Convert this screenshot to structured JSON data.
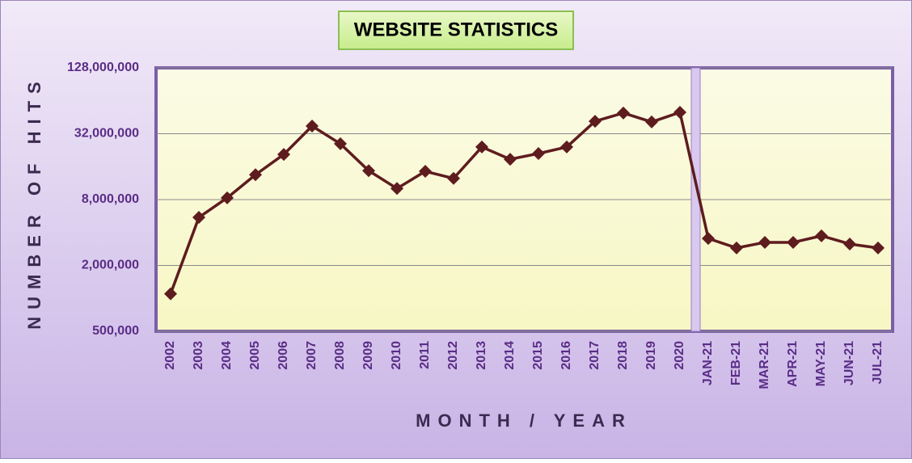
{
  "chart_data": {
    "type": "line",
    "title": "WEBSITE STATISTICS",
    "x_label": "MONTH / YEAR",
    "y_label": "NUMBER OF HITS",
    "categories": [
      "2002",
      "2003",
      "2004",
      "2005",
      "2006",
      "2007",
      "2008",
      "2009",
      "2010",
      "2011",
      "2012",
      "2013",
      "2014",
      "2015",
      "2016",
      "2017",
      "2018",
      "2019",
      "2020",
      "JAN-21",
      "FEB-21",
      "MAR-21",
      "APR-21",
      "MAY-21",
      "JUN-21",
      "JUL-21"
    ],
    "series": [
      {
        "name": "Hits",
        "color": "#5e1c1e",
        "values": [
          1100000,
          5500000,
          8300000,
          13500000,
          20700000,
          37600000,
          25900000,
          14700000,
          10100000,
          14500000,
          12500000,
          24200000,
          18700000,
          21100000,
          24200000,
          41600000,
          49500000,
          41000000,
          50200000,
          3530000,
          2890000,
          3250000,
          3250000,
          3730000,
          3140000,
          2890000
        ]
      }
    ],
    "ylim": [
      500000,
      128000000
    ],
    "log_scale": true,
    "grid": true,
    "yticks": [
      {
        "value": 500000,
        "label": "500,000"
      },
      {
        "value": 2000000,
        "label": "2,000,000"
      },
      {
        "value": 8000000,
        "label": "8,000,000"
      },
      {
        "value": 32000000,
        "label": "32,000,000"
      },
      {
        "value": 128000000,
        "label": "128,000,000"
      }
    ]
  }
}
